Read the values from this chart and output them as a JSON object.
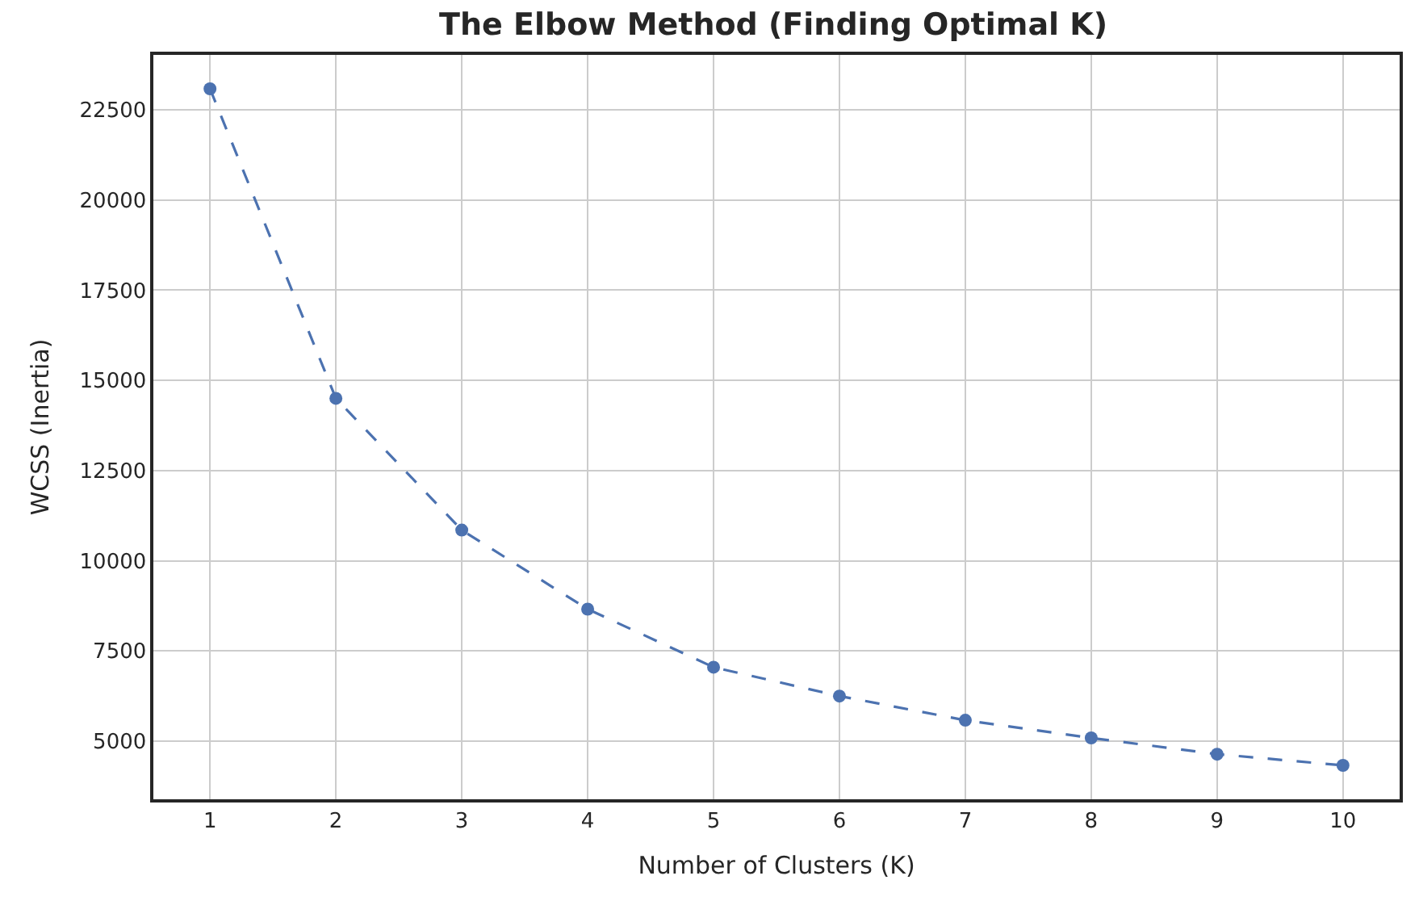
{
  "chart_data": {
    "type": "line",
    "title": "The Elbow Method (Finding Optimal K)",
    "xlabel": "Number of Clusters (K)",
    "ylabel": "WCSS (Inertia)",
    "x": [
      1,
      2,
      3,
      4,
      5,
      6,
      7,
      8,
      9,
      10
    ],
    "series": [
      {
        "color": "#4c72b0",
        "values": [
          23080,
          14500,
          10850,
          8660,
          7050,
          6250,
          5580,
          5090,
          4640,
          4330
        ]
      }
    ],
    "xlim": [
      0.55,
      10.45
    ],
    "xticks": [
      1,
      2,
      3,
      4,
      5,
      6,
      7,
      8,
      9,
      10
    ],
    "ylim": [
      3390,
      24020
    ],
    "yticks": [
      5000,
      7500,
      10000,
      12500,
      15000,
      17500,
      20000,
      22500
    ],
    "grid": true,
    "marker": "circle",
    "line_style": "dashed"
  }
}
